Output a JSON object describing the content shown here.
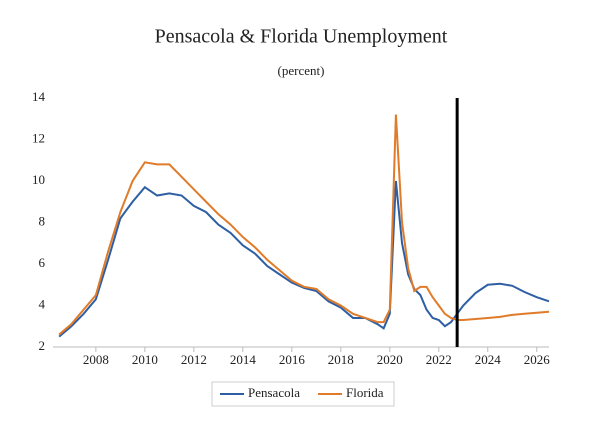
{
  "chart_data": {
    "type": "line",
    "title": "Pensacola & Florida Unemployment",
    "subtitle": "(percent)",
    "x": [
      2006.5,
      2007,
      2007.5,
      2008,
      2008.5,
      2009,
      2009.5,
      2010,
      2010.5,
      2011,
      2011.5,
      2012,
      2012.5,
      2013,
      2013.5,
      2014,
      2014.5,
      2015,
      2015.5,
      2016,
      2016.5,
      2017,
      2017.5,
      2018,
      2018.5,
      2019,
      2019.5,
      2019.75,
      2020,
      2020.25,
      2020.5,
      2020.75,
      2021,
      2021.25,
      2021.5,
      2021.75,
      2022,
      2022.25,
      2022.5,
      2022.75,
      2023,
      2023.5,
      2024,
      2024.5,
      2025,
      2025.5,
      2026,
      2026.5
    ],
    "series": [
      {
        "name": "Pensacola",
        "color": "#2e5fa3",
        "values": [
          2.5,
          3.0,
          3.6,
          4.3,
          6.2,
          8.2,
          9.0,
          9.7,
          9.3,
          9.4,
          9.3,
          8.8,
          8.5,
          7.9,
          7.5,
          6.9,
          6.5,
          5.9,
          5.5,
          5.1,
          4.85,
          4.7,
          4.2,
          3.9,
          3.4,
          3.4,
          3.1,
          2.9,
          3.6,
          10.0,
          7.0,
          5.5,
          4.8,
          4.5,
          3.8,
          3.4,
          3.3,
          3.0,
          3.2,
          3.6,
          4.0,
          4.6,
          5.0,
          5.05,
          4.95,
          4.65,
          4.4,
          4.2
        ]
      },
      {
        "name": "Florida",
        "color": "#e07b2a",
        "values": [
          2.6,
          3.1,
          3.8,
          4.5,
          6.6,
          8.5,
          10.0,
          10.9,
          10.8,
          10.8,
          10.2,
          9.6,
          9.0,
          8.4,
          7.9,
          7.3,
          6.8,
          6.2,
          5.7,
          5.2,
          4.9,
          4.8,
          4.3,
          4.0,
          3.6,
          3.4,
          3.2,
          3.2,
          3.8,
          13.2,
          8.0,
          5.8,
          4.7,
          4.9,
          4.9,
          4.4,
          4.0,
          3.6,
          3.4,
          3.3,
          3.3,
          3.35,
          3.4,
          3.45,
          3.55,
          3.6,
          3.65,
          3.7
        ]
      }
    ],
    "vline": 2022.75,
    "xlim": [
      2006.25,
      2026.5
    ],
    "xticks": [
      2008,
      2010,
      2012,
      2014,
      2016,
      2018,
      2020,
      2022,
      2024,
      2026
    ],
    "ylim": [
      2,
      14
    ],
    "yticks": [
      2,
      4,
      6,
      8,
      10,
      12,
      14
    ],
    "grid": false,
    "legend": "bottom"
  }
}
